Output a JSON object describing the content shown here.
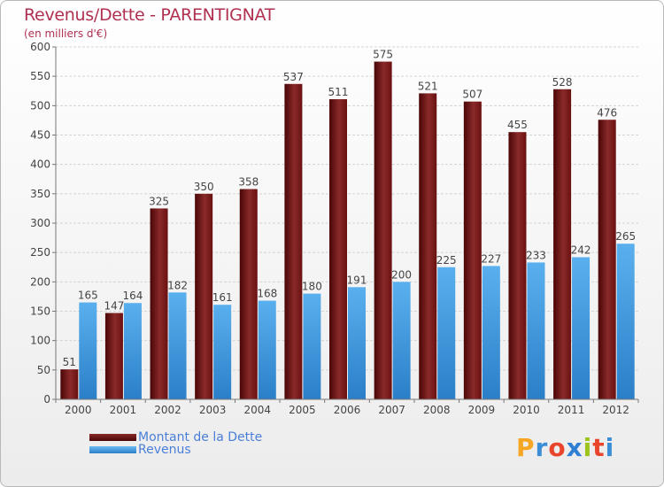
{
  "header": {
    "title": "Revenus/Dette - PARENTIGNAT",
    "subtitle": "(en milliers d'€)"
  },
  "legend": {
    "dette": "Montant de la Dette",
    "revenus": "Revenus"
  },
  "logo": {
    "letters": [
      "P",
      "r",
      "o",
      "x",
      "i",
      "t",
      "i"
    ],
    "colors": [
      "#f5a623",
      "#3b8ed6",
      "#e8452c",
      "#2f7fd4",
      "#9dc41a",
      "#e8452c",
      "#3b8ed6"
    ]
  },
  "colors": {
    "dette": "#6e1414",
    "revenus": "#4a9fe0",
    "title": "#b03050"
  },
  "chart_data": {
    "type": "bar",
    "title": "Revenus/Dette - PARENTIGNAT",
    "subtitle": "(en milliers d'€)",
    "categories": [
      "2000",
      "2001",
      "2002",
      "2003",
      "2004",
      "2005",
      "2006",
      "2007",
      "2008",
      "2009",
      "2010",
      "2011",
      "2012"
    ],
    "series": [
      {
        "name": "Montant de la Dette",
        "values": [
          51,
          147,
          325,
          350,
          358,
          537,
          511,
          575,
          521,
          507,
          455,
          528,
          476
        ]
      },
      {
        "name": "Revenus",
        "values": [
          165,
          164,
          182,
          161,
          168,
          180,
          191,
          200,
          225,
          227,
          233,
          242,
          265
        ]
      }
    ],
    "ylim": [
      0,
      600
    ],
    "yticks": [
      0,
      50,
      100,
      150,
      200,
      250,
      300,
      350,
      400,
      450,
      500,
      550,
      600
    ],
    "grid": true,
    "legend_position": "bottom-left"
  }
}
